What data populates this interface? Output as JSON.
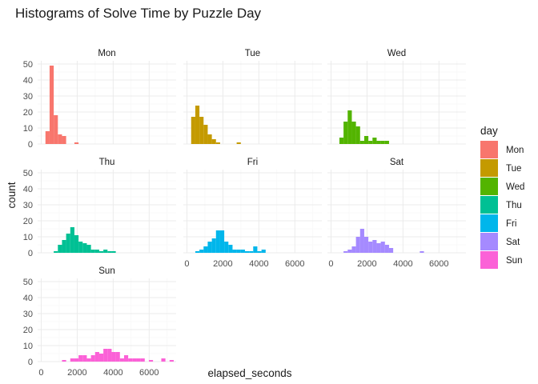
{
  "chart_data": {
    "type": "bar",
    "title": "Histograms of Solve Time by Puzzle Day",
    "xlabel": "elapsed_seconds",
    "ylabel": "count",
    "legend": {
      "title": "day",
      "position": "right"
    },
    "xlim": [
      -200,
      7500
    ],
    "ylim": [
      0,
      52
    ],
    "xticks": [
      0,
      2000,
      4000,
      6000
    ],
    "yticks": [
      0,
      10,
      20,
      30,
      40,
      50
    ],
    "binwidth": 230,
    "grid": true,
    "panels": [
      {
        "name": "Mon",
        "color": "#F8766D",
        "bars": [
          [
            350,
            8
          ],
          [
            580,
            49
          ],
          [
            810,
            18
          ],
          [
            1040,
            6
          ],
          [
            1270,
            5
          ],
          [
            1960,
            1
          ]
        ]
      },
      {
        "name": "Tue",
        "color": "#C49A00",
        "bars": [
          [
            350,
            17
          ],
          [
            580,
            24
          ],
          [
            810,
            17
          ],
          [
            1040,
            12
          ],
          [
            1270,
            6
          ],
          [
            1500,
            3
          ],
          [
            1730,
            1
          ],
          [
            2880,
            1
          ]
        ]
      },
      {
        "name": "Wed",
        "color": "#53B400",
        "bars": [
          [
            580,
            4
          ],
          [
            810,
            14
          ],
          [
            1040,
            21
          ],
          [
            1270,
            14
          ],
          [
            1500,
            11
          ],
          [
            1730,
            2
          ],
          [
            1960,
            5
          ],
          [
            2190,
            2
          ],
          [
            2420,
            4
          ],
          [
            2650,
            2
          ],
          [
            2880,
            2
          ],
          [
            3110,
            2
          ]
        ]
      },
      {
        "name": "Thu",
        "color": "#00C094",
        "bars": [
          [
            810,
            1
          ],
          [
            1040,
            5
          ],
          [
            1270,
            8
          ],
          [
            1500,
            12
          ],
          [
            1730,
            16
          ],
          [
            1960,
            11
          ],
          [
            2190,
            7
          ],
          [
            2420,
            6
          ],
          [
            2650,
            5
          ],
          [
            2880,
            2
          ],
          [
            3110,
            2
          ],
          [
            3340,
            1
          ],
          [
            3570,
            2
          ],
          [
            3800,
            1
          ],
          [
            4030,
            1
          ]
        ]
      },
      {
        "name": "Fri",
        "color": "#00B6EB",
        "bars": [
          [
            580,
            1
          ],
          [
            810,
            2
          ],
          [
            1040,
            4
          ],
          [
            1270,
            7
          ],
          [
            1500,
            9
          ],
          [
            1730,
            14
          ],
          [
            1960,
            14
          ],
          [
            2190,
            7
          ],
          [
            2420,
            5
          ],
          [
            2650,
            2
          ],
          [
            2880,
            2
          ],
          [
            3110,
            2
          ],
          [
            3340,
            1
          ],
          [
            3570,
            1
          ],
          [
            3800,
            4
          ],
          [
            4030,
            1
          ],
          [
            4260,
            2
          ]
        ]
      },
      {
        "name": "Sat",
        "color": "#A58AFF",
        "bars": [
          [
            810,
            1
          ],
          [
            1040,
            2
          ],
          [
            1270,
            4
          ],
          [
            1500,
            10
          ],
          [
            1730,
            15
          ],
          [
            1960,
            10
          ],
          [
            2190,
            7
          ],
          [
            2420,
            8
          ],
          [
            2650,
            6
          ],
          [
            2880,
            7
          ],
          [
            3110,
            5
          ],
          [
            3340,
            3
          ],
          [
            5050,
            1
          ]
        ]
      },
      {
        "name": "Sun",
        "color": "#FB61D7",
        "bars": [
          [
            1270,
            1
          ],
          [
            1730,
            2
          ],
          [
            1960,
            2
          ],
          [
            2190,
            4
          ],
          [
            2420,
            4
          ],
          [
            2650,
            2
          ],
          [
            2880,
            4
          ],
          [
            3110,
            6
          ],
          [
            3340,
            5
          ],
          [
            3570,
            8
          ],
          [
            3800,
            8
          ],
          [
            4030,
            6
          ],
          [
            4260,
            6
          ],
          [
            4490,
            2
          ],
          [
            4720,
            4
          ],
          [
            4950,
            2
          ],
          [
            5180,
            2
          ],
          [
            5410,
            2
          ],
          [
            5640,
            2
          ],
          [
            6100,
            1
          ],
          [
            6790,
            2
          ],
          [
            7250,
            1
          ]
        ]
      }
    ]
  }
}
